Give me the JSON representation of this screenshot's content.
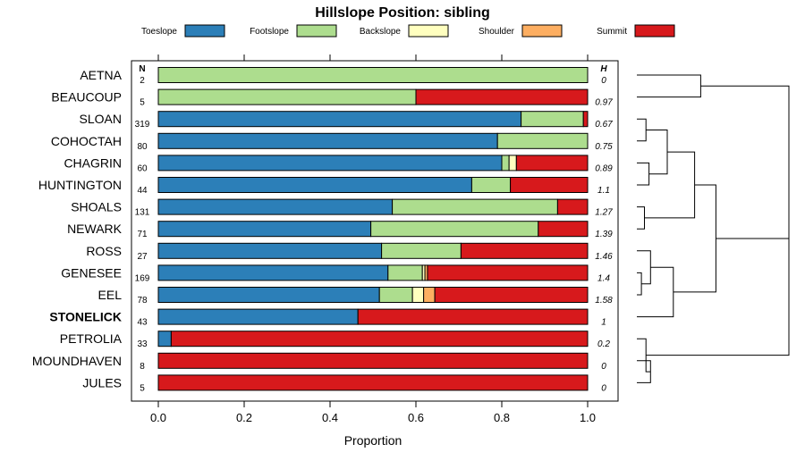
{
  "chart_data": {
    "type": "bar",
    "orientation": "horizontal",
    "stacked": true,
    "title": "Hillslope Position: sibling",
    "xlabel": "Proportion",
    "xlim": [
      0,
      1
    ],
    "x_ticks": [
      "0.0",
      "0.2",
      "0.4",
      "0.6",
      "0.8",
      "1.0"
    ],
    "legend_placement": "top",
    "n_header": "N",
    "h_header": "H",
    "series": [
      {
        "name": "Toeslope",
        "color": "#2c7fb8"
      },
      {
        "name": "Footslope",
        "color": "#addd8e"
      },
      {
        "name": "Backslope",
        "color": "#ffffbf"
      },
      {
        "name": "Shoulder",
        "color": "#fdae61"
      },
      {
        "name": "Summit",
        "color": "#d7191c"
      }
    ],
    "rows": [
      {
        "name": "AETNA",
        "n": "2",
        "h": "0",
        "bold": false,
        "values": [
          0.0,
          1.0,
          0.0,
          0.0,
          0.0
        ]
      },
      {
        "name": "BEAUCOUP",
        "n": "5",
        "h": "0.97",
        "bold": false,
        "values": [
          0.0,
          0.6,
          0.0,
          0.0,
          0.4
        ]
      },
      {
        "name": "SLOAN",
        "n": "319",
        "h": "0.67",
        "bold": false,
        "values": [
          0.845,
          0.145,
          0.0,
          0.0,
          0.01
        ]
      },
      {
        "name": "COHOCTAH",
        "n": "80",
        "h": "0.75",
        "bold": false,
        "values": [
          0.79,
          0.21,
          0.0,
          0.0,
          0.0
        ]
      },
      {
        "name": "CHAGRIN",
        "n": "60",
        "h": "0.89",
        "bold": false,
        "values": [
          0.8,
          0.017,
          0.017,
          0.0,
          0.166
        ]
      },
      {
        "name": "HUNTINGTON",
        "n": "44",
        "h": "1.1",
        "bold": false,
        "values": [
          0.73,
          0.09,
          0.0,
          0.0,
          0.18
        ]
      },
      {
        "name": "SHOALS",
        "n": "131",
        "h": "1.27",
        "bold": false,
        "values": [
          0.545,
          0.385,
          0.0,
          0.0,
          0.07
        ]
      },
      {
        "name": "NEWARK",
        "n": "71",
        "h": "1.39",
        "bold": false,
        "values": [
          0.495,
          0.39,
          0.0,
          0.0,
          0.115
        ]
      },
      {
        "name": "ROSS",
        "n": "27",
        "h": "1.46",
        "bold": false,
        "values": [
          0.52,
          0.185,
          0.0,
          0.0,
          0.295
        ]
      },
      {
        "name": "GENESEE",
        "n": "169",
        "h": "1.4",
        "bold": false,
        "values": [
          0.535,
          0.08,
          0.006,
          0.006,
          0.373
        ]
      },
      {
        "name": "EEL",
        "n": "78",
        "h": "1.58",
        "bold": false,
        "values": [
          0.515,
          0.077,
          0.026,
          0.026,
          0.356
        ]
      },
      {
        "name": "STONELICK",
        "n": "43",
        "h": "1",
        "bold": true,
        "values": [
          0.465,
          0.0,
          0.0,
          0.0,
          0.535
        ]
      },
      {
        "name": "PETROLIA",
        "n": "33",
        "h": "0.2",
        "bold": false,
        "values": [
          0.03,
          0.0,
          0.0,
          0.0,
          0.97
        ]
      },
      {
        "name": "MOUNDHAVEN",
        "n": "8",
        "h": "0",
        "bold": false,
        "values": [
          0.0,
          0.0,
          0.0,
          0.0,
          1.0
        ]
      },
      {
        "name": "JULES",
        "n": "5",
        "h": "0",
        "bold": false,
        "values": [
          0.0,
          0.0,
          0.0,
          0.0,
          1.0
        ]
      }
    ],
    "dendrogram": {
      "label": [
        "AETNA",
        "BEAUCOUP",
        "SLOAN",
        "COHOCTAH",
        "CHAGRIN",
        "HUNTINGTON",
        "SHOALS",
        "NEWARK",
        "ROSS",
        "GENESEE",
        "EEL",
        "STONELICK",
        "PETROLIA",
        "MOUNDHAVEN",
        "JULES"
      ],
      "merges": [
        {
          "a": 0,
          "b": 1,
          "height": 0.42
        },
        {
          "a": 2,
          "b": 3,
          "height": 0.06
        },
        {
          "a": 4,
          "b": 5,
          "height": 0.08
        },
        {
          "a": 101,
          "b": 102,
          "height": 0.2
        },
        {
          "a": 6,
          "b": 7,
          "height": 0.05
        },
        {
          "a": 103,
          "b": 104,
          "height": 0.38
        },
        {
          "a": 9,
          "b": 10,
          "height": 0.03
        },
        {
          "a": 8,
          "b": 106,
          "height": 0.09
        },
        {
          "a": 107,
          "b": 11,
          "height": 0.24
        },
        {
          "a": 105,
          "b": 108,
          "height": 0.52
        },
        {
          "a": 13,
          "b": 14,
          "height": 0.09
        },
        {
          "a": 12,
          "b": 110,
          "height": 0.06
        },
        {
          "a": 100,
          "b": 109,
          "height": 1.0
        },
        {
          "a": 112,
          "b": 111,
          "height": 1.0
        }
      ]
    }
  }
}
